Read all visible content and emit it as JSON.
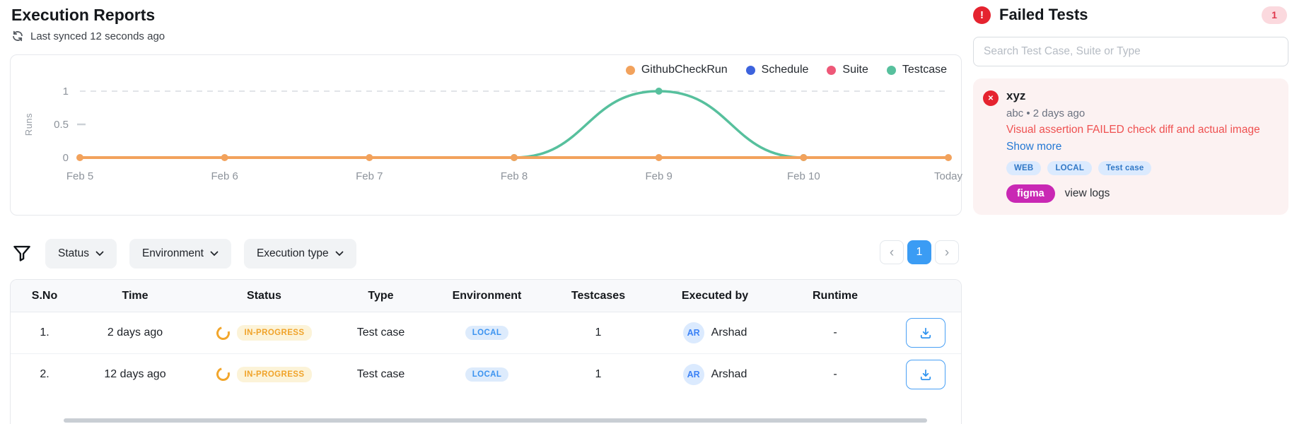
{
  "header": {
    "title": "Execution Reports",
    "last_synced": "Last synced 12 seconds ago"
  },
  "chart_data": {
    "type": "line",
    "x": [
      "Feb 5",
      "Feb 6",
      "Feb 7",
      "Feb 8",
      "Feb 9",
      "Feb 10",
      "Today"
    ],
    "series": [
      {
        "name": "GithubCheckRun",
        "color": "#F2A25C",
        "width": 4,
        "smooth": false,
        "values": [
          0,
          0,
          0,
          0,
          0,
          0,
          0
        ]
      },
      {
        "name": "Schedule",
        "color": "#3D63DD",
        "width": 3.5,
        "smooth": false,
        "values": [
          null,
          null,
          null,
          null,
          null,
          null,
          null
        ]
      },
      {
        "name": "Suite",
        "color": "#EE5878",
        "width": 3.5,
        "smooth": false,
        "values": [
          null,
          null,
          null,
          null,
          null,
          null,
          null
        ]
      },
      {
        "name": "Testcase",
        "color": "#57C09D",
        "width": 3.5,
        "smooth": true,
        "values": [
          null,
          null,
          null,
          0,
          1,
          0,
          null
        ]
      }
    ],
    "title": "",
    "xlabel": "",
    "ylabel": "Runs",
    "ylim": [
      0,
      1
    ],
    "yticks": [
      1,
      0.5,
      0
    ],
    "grid": "dashed line at y=1 only",
    "legend_position": "top-right"
  },
  "filters": {
    "items": [
      {
        "label": "Status"
      },
      {
        "label": "Environment"
      },
      {
        "label": "Execution type"
      }
    ]
  },
  "pagination": {
    "prev": "‹",
    "current": "1",
    "next": "›"
  },
  "table": {
    "columns": [
      "S.No",
      "Time",
      "Status",
      "Type",
      "Environment",
      "Testcases",
      "Executed by",
      "Runtime",
      ""
    ],
    "rows": [
      {
        "sno": "1.",
        "time": "2 days ago",
        "status": "IN-PROGRESS",
        "type": "Test case",
        "environment": "LOCAL",
        "testcases": "1",
        "executed_by": {
          "initials": "AR",
          "name": "Arshad"
        },
        "runtime": "-"
      },
      {
        "sno": "2.",
        "time": "12 days ago",
        "status": "IN-PROGRESS",
        "type": "Test case",
        "environment": "LOCAL",
        "testcases": "1",
        "executed_by": {
          "initials": "AR",
          "name": "Arshad"
        },
        "runtime": "-"
      }
    ]
  },
  "sidebar": {
    "title": "Failed Tests",
    "count": "1",
    "alert_glyph": "!",
    "close_glyph": "✕",
    "search_placeholder": "Search Test Case, Suite or Type",
    "failed_test": {
      "name": "xyz",
      "meta": "abc • 2 days ago",
      "error": "Visual assertion FAILED check diff and actual image",
      "show_more": "Show more",
      "tags": [
        "WEB",
        "LOCAL",
        "Test case"
      ],
      "integration": "figma",
      "view_logs": "view logs"
    }
  },
  "colors": {
    "accent_blue": "#3b9cf4",
    "status_inprogress": "#F0A32A",
    "badge_local_text": "#3B93F0",
    "failed_red": "#E5232F",
    "error_text": "#EF5151",
    "link_blue": "#2478D4",
    "figma_pill": "#C928B4"
  }
}
